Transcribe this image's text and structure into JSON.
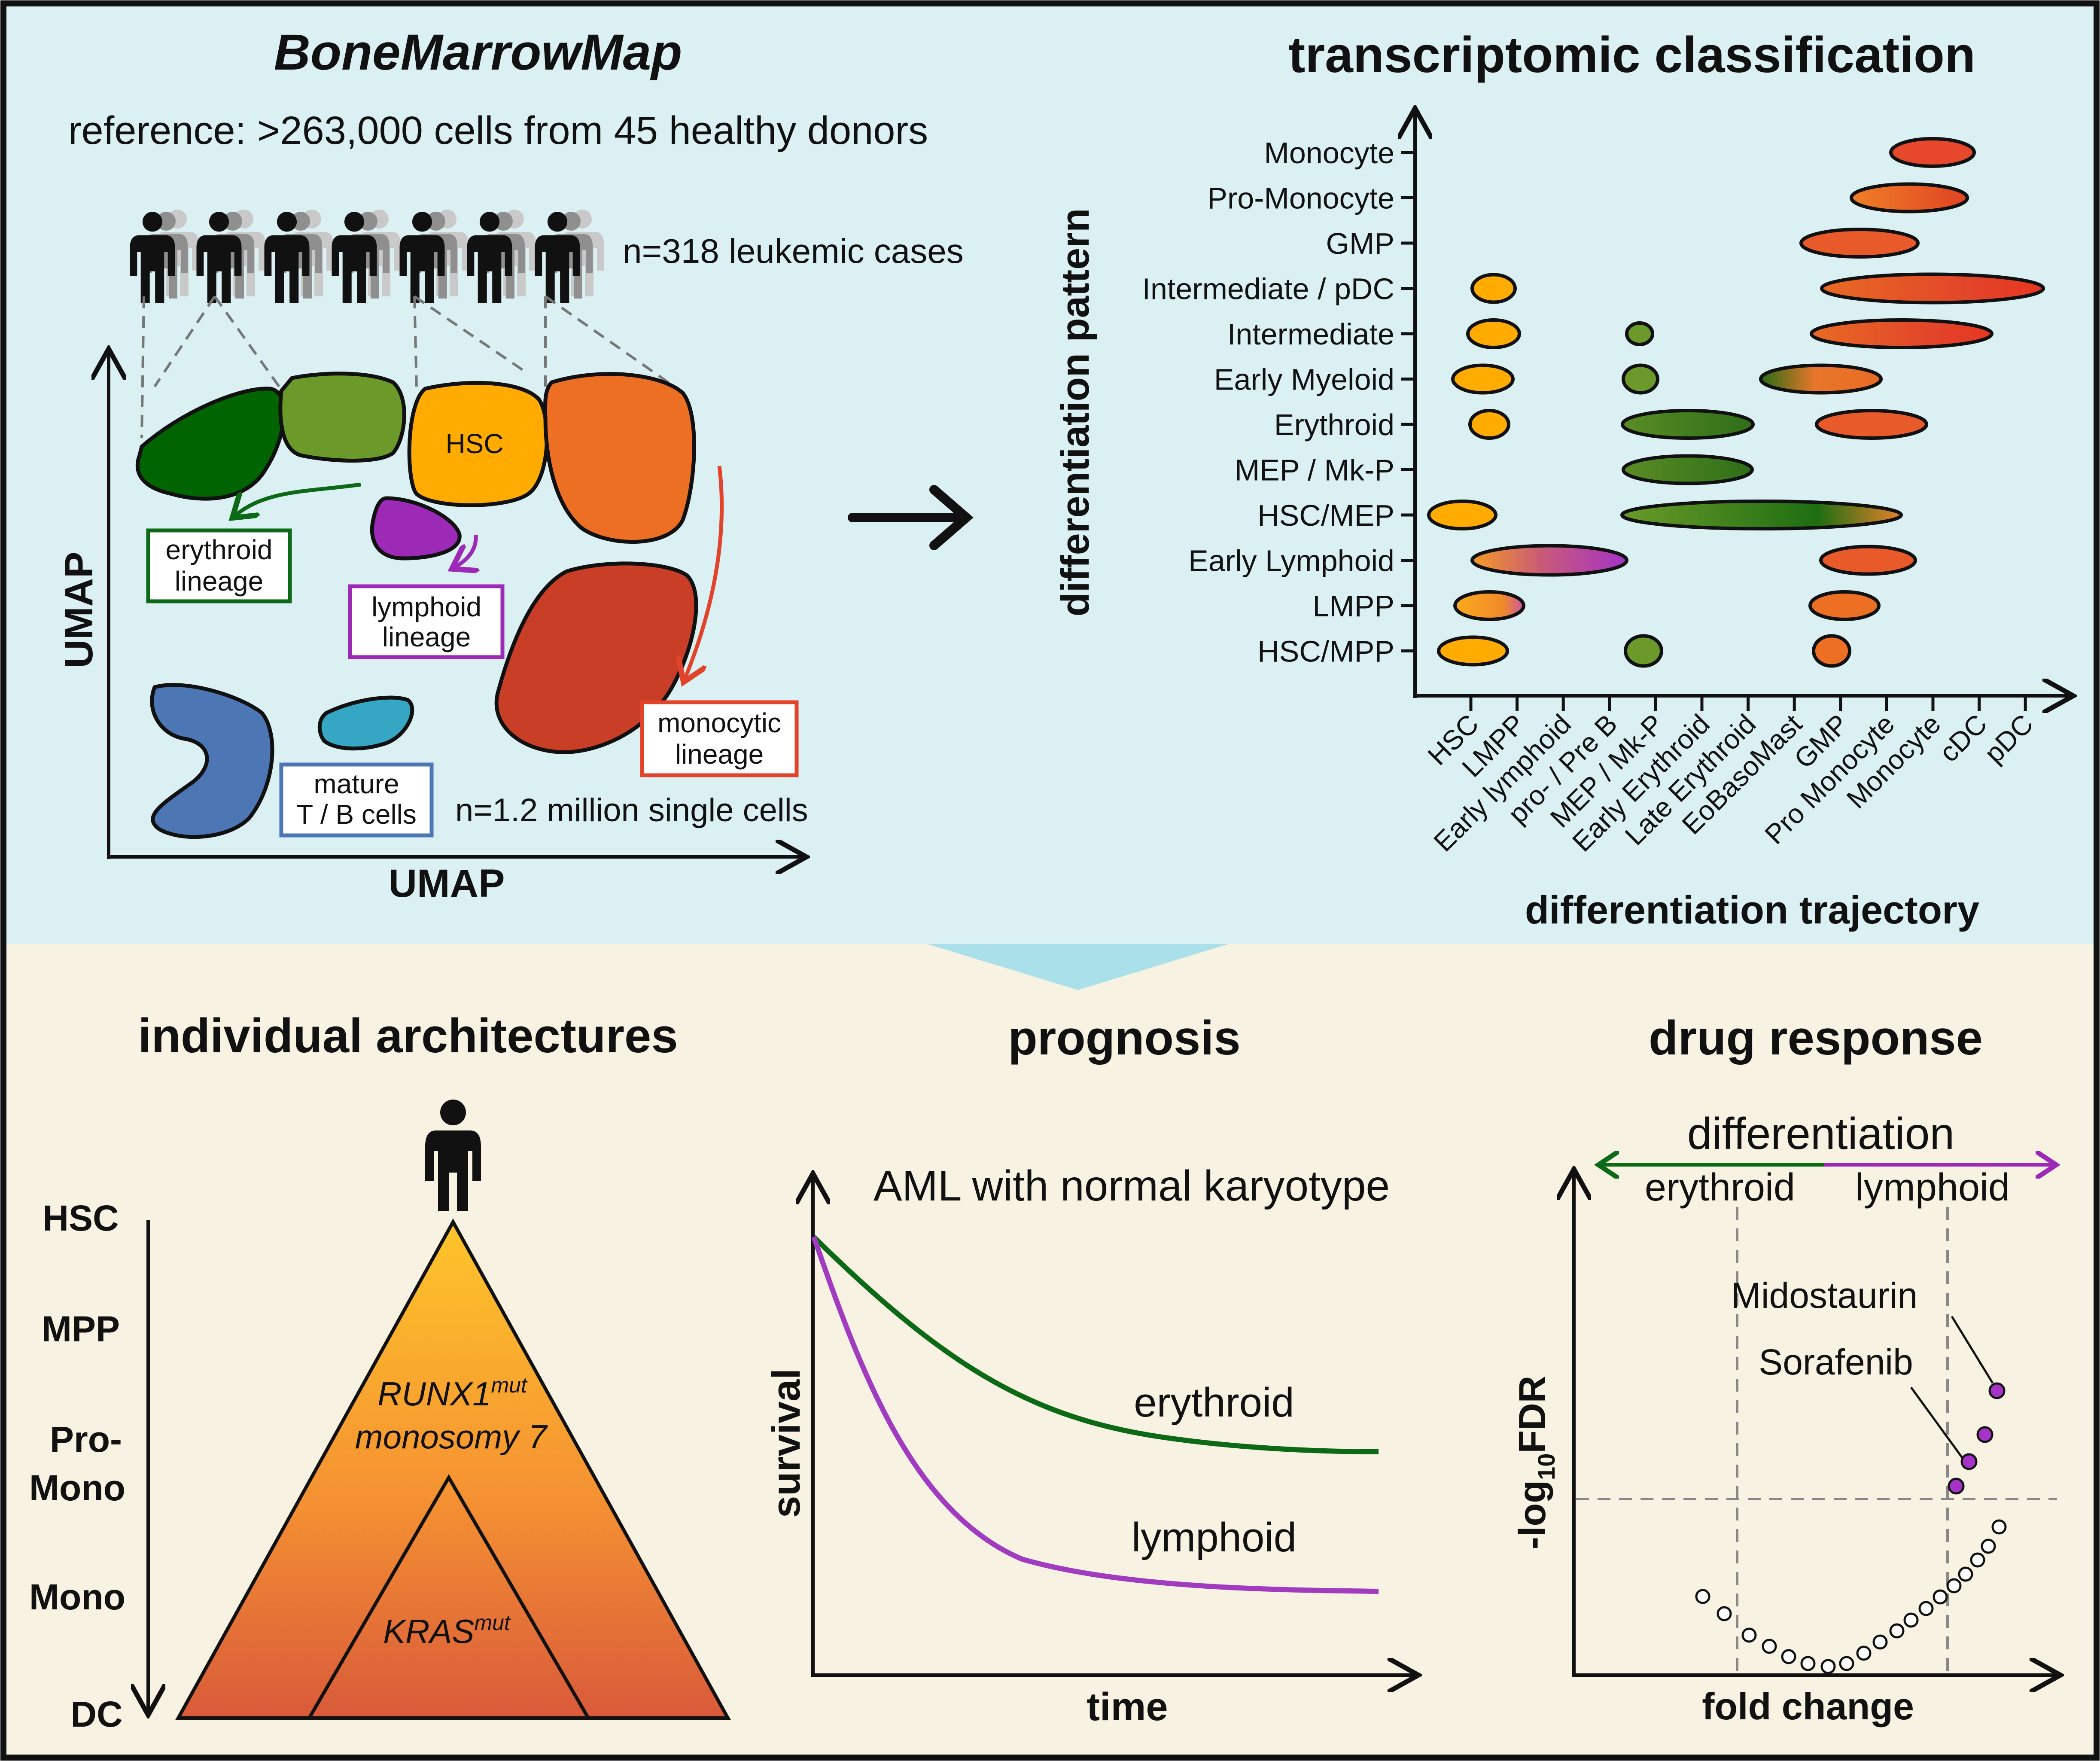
{
  "top": {
    "left_title": "BoneMarrowMap",
    "reference": "reference: >263,000 cells from 45 healthy donors",
    "cases": "n=318 leukemic cases",
    "single_cells": "n=1.2 million single cells",
    "umap_x": "UMAP",
    "umap_y": "UMAP",
    "hsc_label": "HSC",
    "lineages": {
      "erythroid": [
        "erythroid",
        "lineage"
      ],
      "lymphoid": [
        "lymphoid",
        "lineage"
      ],
      "monocytic": [
        "monocytic",
        "lineage"
      ],
      "mature": [
        "mature",
        "T / B cells"
      ]
    },
    "right_title": "transcriptomic classification",
    "pattern_axis": "differentiation pattern",
    "trajectory_axis": "differentiation trajectory",
    "patterns": [
      "Monocyte",
      "Pro-Monocyte",
      "GMP",
      "Intermediate / pDC",
      "Intermediate",
      "Early Myeloid",
      "Erythroid",
      "MEP / Mk-P",
      "HSC/MEP",
      "Early Lymphoid",
      "LMPP",
      "HSC/MPP"
    ],
    "trajectory": [
      "HSC",
      "LMPP",
      "Early lymphoid",
      "pro- / Pre B",
      "MEP / Mk-P",
      "Early Erythroid",
      "Late Erythroid",
      "EoBasoMast",
      "GMP",
      "Pro Monocyte",
      "Monocyte",
      "cDC",
      "pDC"
    ]
  },
  "colors": {
    "panel_top": "#dbf0f3",
    "panel_bottom": "#f7f2e2",
    "hsc": "#ffab00",
    "dark_green": "#006400",
    "green": "#6b9a2a",
    "orange": "#ec6f24",
    "red": "#c93e26",
    "purple": "#9c2ab7",
    "blue": "#4c76b4",
    "teal": "#35a7c4",
    "curve_green": "#0c6a17",
    "curve_purple": "#a13cc1"
  },
  "bottom": {
    "arch": {
      "title": "individual architectures",
      "levels": [
        "HSC",
        "MPP",
        "Pro-",
        "Mono",
        "Mono",
        "DC"
      ],
      "clone1_gene": "RUNX1",
      "clone1_sup": "mut",
      "clone1_line2": "monosomy 7",
      "clone2_gene": "KRAS",
      "clone2_sup": "mut"
    },
    "prognosis": {
      "title": "prognosis",
      "subtitle": "AML with normal karyotype",
      "ylabel": "survival",
      "xlabel": "time",
      "series_erythroid": "erythroid",
      "series_lymphoid": "lymphoid"
    },
    "drug": {
      "title": "drug response",
      "header": "differentiation",
      "left": "erythroid",
      "right": "lymphoid",
      "ylabel_pre": "-log",
      "ylabel_sub": "10",
      "ylabel_post": "FDR",
      "xlabel": "fold change",
      "drug1": "Midostaurin",
      "drug2": "Sorafenib"
    }
  }
}
